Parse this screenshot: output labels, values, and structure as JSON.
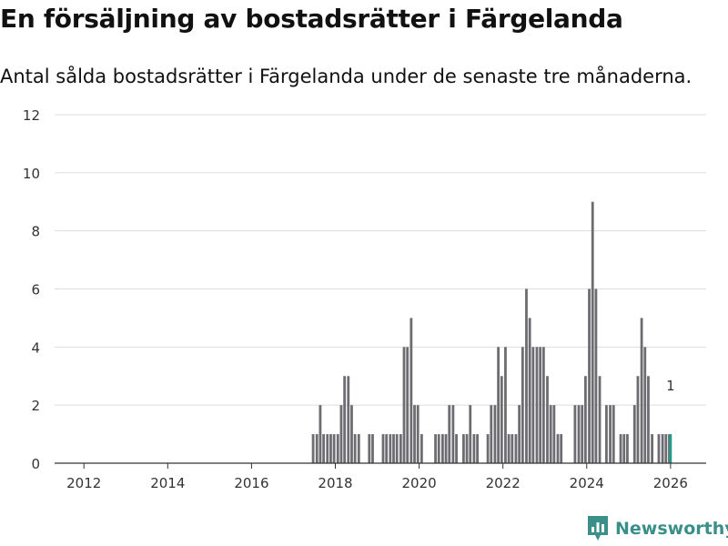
{
  "title": "En försäljning av bostadsrätter i Färgelanda",
  "subtitle": "Antal sålda bostadsrätter i Färgelanda under de senaste tre månaderna.",
  "brand": {
    "name": "Newsworthy",
    "color": "#3a8f88"
  },
  "colors": {
    "bar": "#6d6c70",
    "highlight": "#1f9c8c",
    "grid": "#dddddd",
    "axis": "#333333"
  },
  "chart_data": {
    "type": "bar",
    "title": "En försäljning av bostadsrätter i Färgelanda",
    "xlabel": "",
    "ylabel": "",
    "xlim": [
      2011.3,
      2026.85
    ],
    "ylim": [
      0,
      12
    ],
    "x_ticks": [
      2012,
      2014,
      2016,
      2018,
      2020,
      2022,
      2024,
      2026
    ],
    "y_ticks": [
      0,
      2,
      4,
      6,
      8,
      10,
      12
    ],
    "grid": true,
    "annotation": {
      "label": "1",
      "x": 2026.0,
      "y": 1
    },
    "highlight_index": 128,
    "series": [
      {
        "name": "Antal sålda bostadsrätter",
        "x": [
          2015.39,
          2015.47,
          2015.56,
          2015.64,
          2015.72,
          2015.81,
          2015.89,
          2015.97,
          2016.06,
          2016.14,
          2016.22,
          2016.31,
          2016.39,
          2016.47,
          2016.56,
          2016.64,
          2016.72,
          2016.81,
          2016.89,
          2016.97,
          2017.06,
          2017.14,
          2017.22,
          2017.31,
          2017.39,
          2017.47,
          2017.56,
          2017.64,
          2017.72,
          2017.81,
          2017.89,
          2017.97,
          2018.06,
          2018.14,
          2018.22,
          2018.31,
          2018.39,
          2018.47,
          2018.56,
          2018.64,
          2018.72,
          2018.81,
          2018.89,
          2018.97,
          2019.06,
          2019.14,
          2019.22,
          2019.31,
          2019.39,
          2019.47,
          2019.56,
          2019.64,
          2019.72,
          2019.81,
          2019.89,
          2019.97,
          2020.06,
          2020.14,
          2020.22,
          2020.31,
          2020.39,
          2020.47,
          2020.56,
          2020.64,
          2020.72,
          2020.81,
          2020.89,
          2020.97,
          2021.06,
          2021.14,
          2021.22,
          2021.31,
          2021.39,
          2021.47,
          2021.56,
          2021.64,
          2021.72,
          2021.81,
          2021.89,
          2021.97,
          2022.06,
          2022.14,
          2022.22,
          2022.31,
          2022.39,
          2022.47,
          2022.56,
          2022.64,
          2022.72,
          2022.81,
          2022.89,
          2022.97,
          2023.06,
          2023.14,
          2023.22,
          2023.31,
          2023.39,
          2023.47,
          2023.56,
          2023.64,
          2023.72,
          2023.81,
          2023.89,
          2023.97,
          2024.06,
          2024.14,
          2024.22,
          2024.31,
          2024.39,
          2024.47,
          2024.56,
          2024.64,
          2024.72,
          2024.81,
          2024.89,
          2024.97,
          2025.06,
          2025.14,
          2025.22,
          2025.31,
          2025.39,
          2025.47,
          2025.56,
          2025.64,
          2025.72,
          2025.81,
          2025.89,
          2025.97,
          2026.0
        ],
        "values": [
          0,
          0,
          0,
          0,
          0,
          0,
          0,
          0,
          0,
          0,
          0,
          0,
          0,
          0,
          0,
          0,
          0,
          0,
          0,
          0,
          0,
          0,
          0,
          0,
          0,
          1,
          1,
          2,
          1,
          1,
          1,
          1,
          1,
          2,
          3,
          3,
          2,
          1,
          1,
          0,
          0,
          1,
          1,
          0,
          0,
          1,
          1,
          1,
          1,
          1,
          1,
          4,
          4,
          5,
          2,
          2,
          1,
          0,
          0,
          0,
          1,
          1,
          1,
          1,
          2,
          2,
          1,
          0,
          1,
          1,
          2,
          1,
          1,
          0,
          0,
          1,
          2,
          2,
          4,
          3,
          4,
          1,
          1,
          1,
          2,
          4,
          6,
          5,
          4,
          4,
          4,
          4,
          3,
          2,
          2,
          1,
          1,
          0,
          0,
          0,
          2,
          2,
          2,
          3,
          6,
          9,
          6,
          3,
          0,
          2,
          2,
          2,
          0,
          1,
          1,
          1,
          0,
          2,
          3,
          5,
          4,
          3,
          1,
          0,
          1,
          1,
          1,
          1,
          1
        ]
      }
    ]
  }
}
